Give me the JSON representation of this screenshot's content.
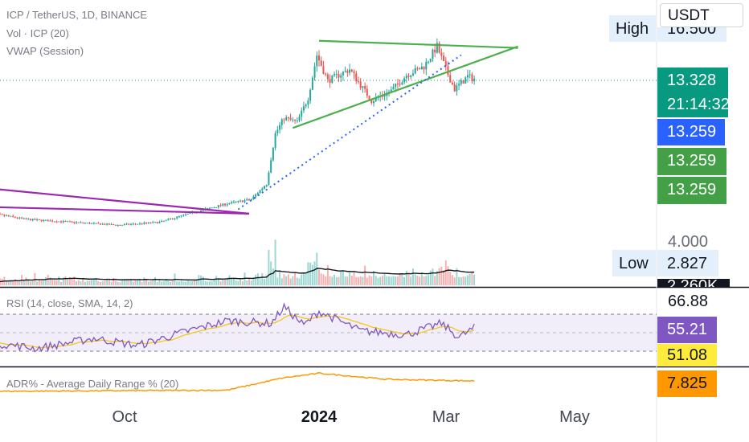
{
  "legend": {
    "symbol_line": "ICP / TetherUS, 1D, BINANCE",
    "volume": "Vol · ICP (20)",
    "vwap": "VWAP (Session)",
    "rsi": "RSI (14, close, SMA, 14, 2)",
    "adr": "ADR% - Average Daily Range % (20)"
  },
  "currency_button": "USDT",
  "high_label": "High",
  "high_value_partial": "16.500",
  "low_label": "Low",
  "price_tags": {
    "last_price": "13.328",
    "countdown": "21:14:32",
    "blue": "13.259",
    "green1": "13.259",
    "green2": "13.259",
    "axis_4000": "4.000",
    "low_value": "2.827",
    "volume_partial": "2.260K",
    "rsi_upper_level": "66.88",
    "rsi_value": "55.21",
    "rsi_ma": "51.08",
    "adr_value": "7.825"
  },
  "x_axis": [
    "Oct",
    "2024",
    "Mar",
    "May"
  ],
  "colors": {
    "up": "#26a69a",
    "down": "#ef5350",
    "trendline_green": "#4caf50",
    "trendline_purple": "#9c27b0",
    "dotted_blue": "#2962ff",
    "rsi_line": "#7e57c2",
    "rsi_ma": "#f5c518",
    "adr_line": "#ff9800",
    "tag_green_dark": "#089981",
    "tag_blue": "#2962ff",
    "tag_green": "#43a047",
    "tag_purple": "#7e57c2",
    "tag_yellow": "#ffeb3b",
    "tag_orange": "#ff9800"
  },
  "chart_data": {
    "type": "candlestick",
    "symbol": "ICP / TetherUS",
    "interval": "1D",
    "exchange": "BINANCE",
    "x_ticks": [
      "Oct",
      "2024",
      "Mar",
      "May"
    ],
    "price_axis_labels": [
      4.0,
      2.827,
      13.259,
      13.328
    ],
    "high": 16.5,
    "low": 2.827,
    "last": 13.328,
    "price_path": [
      {
        "date": "2023-08-01",
        "close": 4.0
      },
      {
        "date": "2023-08-20",
        "close": 3.5
      },
      {
        "date": "2023-09-10",
        "close": 3.3
      },
      {
        "date": "2023-10-01",
        "close": 3.1
      },
      {
        "date": "2023-10-20",
        "close": 3.3
      },
      {
        "date": "2023-11-05",
        "close": 4.0
      },
      {
        "date": "2023-11-20",
        "close": 4.6
      },
      {
        "date": "2023-12-01",
        "close": 4.9
      },
      {
        "date": "2023-12-08",
        "close": 6.0
      },
      {
        "date": "2023-12-12",
        "close": 9.5
      },
      {
        "date": "2023-12-16",
        "close": 10.6
      },
      {
        "date": "2023-12-22",
        "close": 10.3
      },
      {
        "date": "2023-12-27",
        "close": 12.0
      },
      {
        "date": "2023-12-31",
        "close": 15.0
      },
      {
        "date": "2024-01-05",
        "close": 13.2
      },
      {
        "date": "2024-01-15",
        "close": 14.0
      },
      {
        "date": "2024-01-25",
        "close": 11.8
      },
      {
        "date": "2024-02-03",
        "close": 12.5
      },
      {
        "date": "2024-02-10",
        "close": 13.6
      },
      {
        "date": "2024-02-18",
        "close": 14.2
      },
      {
        "date": "2024-02-24",
        "close": 15.6
      },
      {
        "date": "2024-02-28",
        "close": 14.0
      },
      {
        "date": "2024-03-03",
        "close": 12.6
      },
      {
        "date": "2024-03-09",
        "close": 13.5
      },
      {
        "date": "2024-03-12",
        "close": 13.328
      }
    ],
    "trendlines": [
      {
        "color": "green",
        "from": {
          "date": "2024-01-01",
          "price": 16.0
        },
        "to": {
          "date": "2024-04-01",
          "price": 15.5
        }
      },
      {
        "color": "green",
        "from": {
          "date": "2023-12-20",
          "price": 9.9
        },
        "to": {
          "date": "2024-04-01",
          "price": 15.6
        }
      },
      {
        "color": "blue-dotted",
        "from": {
          "date": "2023-11-25",
          "price": 4.2
        },
        "to": {
          "date": "2024-03-06",
          "price": 15.0
        }
      },
      {
        "color": "purple",
        "from": {
          "date": "2023-07-25",
          "price": 5.8
        },
        "to": {
          "date": "2023-11-30",
          "price": 3.9
        }
      },
      {
        "color": "purple",
        "from": {
          "date": "2023-07-25",
          "price": 4.4
        },
        "to": {
          "date": "2023-11-30",
          "price": 3.9
        }
      }
    ],
    "rsi": {
      "levels": [
        70,
        30
      ],
      "last": 55.21,
      "ma_last": 51.08,
      "upper_label": 66.88,
      "path": [
        {
          "date": "2023-08-01",
          "rsi": 40
        },
        {
          "date": "2023-08-25",
          "rsi": 33
        },
        {
          "date": "2023-09-20",
          "rsi": 44
        },
        {
          "date": "2023-10-10",
          "rsi": 36
        },
        {
          "date": "2023-10-30",
          "rsi": 50
        },
        {
          "date": "2023-11-20",
          "rsi": 63
        },
        {
          "date": "2023-12-10",
          "rsi": 60
        },
        {
          "date": "2023-12-16",
          "rsi": 78
        },
        {
          "date": "2023-12-25",
          "rsi": 58
        },
        {
          "date": "2024-01-01",
          "rsi": 73
        },
        {
          "date": "2024-01-20",
          "rsi": 52
        },
        {
          "date": "2024-02-10",
          "rsi": 48
        },
        {
          "date": "2024-02-26",
          "rsi": 60
        },
        {
          "date": "2024-03-05",
          "rsi": 45
        },
        {
          "date": "2024-03-12",
          "rsi": 55.21
        }
      ]
    },
    "adr": {
      "last": 7.825,
      "path": [
        {
          "date": "2023-08-01",
          "adr": 3.5
        },
        {
          "date": "2023-11-20",
          "adr": 4.0
        },
        {
          "date": "2023-12-15",
          "adr": 9.0
        },
        {
          "date": "2024-01-01",
          "adr": 11.0
        },
        {
          "date": "2024-02-01",
          "adr": 8.5
        },
        {
          "date": "2024-03-12",
          "adr": 7.825
        }
      ]
    }
  }
}
